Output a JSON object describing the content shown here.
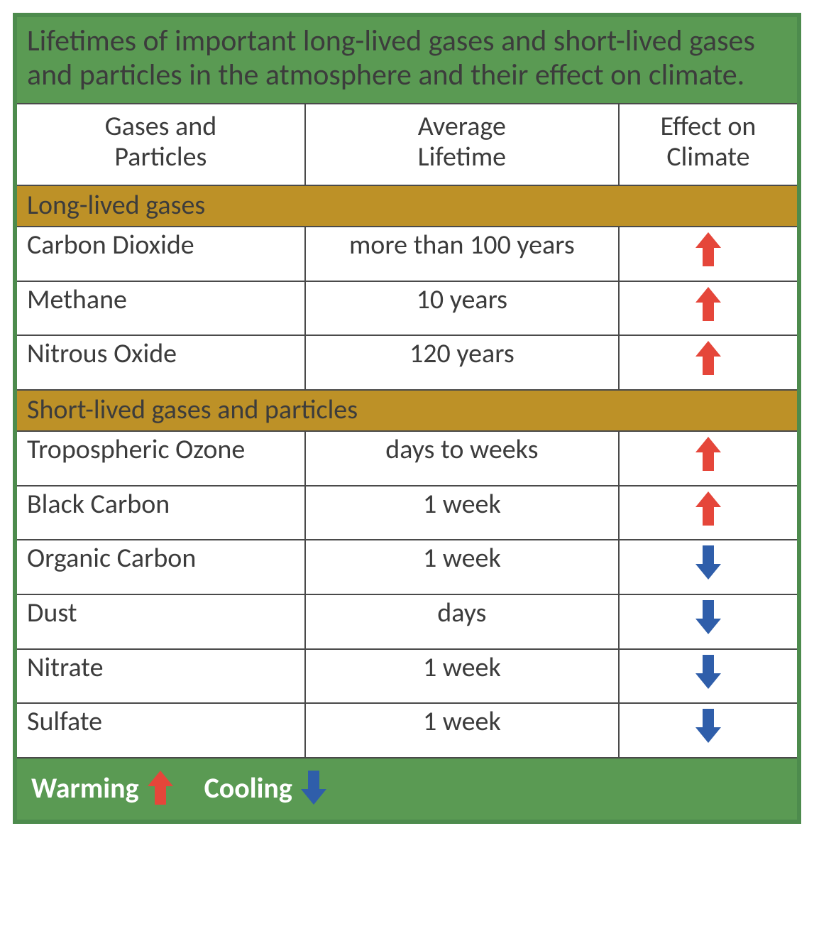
{
  "colors": {
    "border_outer": "#4d8b4d",
    "title_bg": "#5a9a53",
    "section_bg": "#bd9127",
    "legend_bg": "#5a9a53",
    "text": "#3c3c3c",
    "legend_text": "#ffffff",
    "warm_arrow": "#e5463a",
    "cool_arrow": "#2f5eaa"
  },
  "title": "Lifetimes of important long-lived gases and short-lived gases and particles in the atmosphere and their effect on climate.",
  "headers": {
    "col1_a": "Gases and",
    "col1_b": "Particles",
    "col2_a": "Average",
    "col2_b": "Lifetime",
    "col3_a": "Effect on",
    "col3_b": "Climate"
  },
  "sections": [
    {
      "label": "Long-lived gases",
      "rows": [
        {
          "name": "Carbon Dioxide",
          "lifetime": "more than 100 years",
          "effect": "warm"
        },
        {
          "name": "Methane",
          "lifetime": "10 years",
          "effect": "warm"
        },
        {
          "name": "Nitrous Oxide",
          "lifetime": "120 years",
          "effect": "warm"
        }
      ]
    },
    {
      "label": "Short-lived gases and particles",
      "rows": [
        {
          "name": "Tropospheric Ozone",
          "lifetime": "days to weeks",
          "effect": "warm"
        },
        {
          "name": "Black Carbon",
          "lifetime": "1 week",
          "effect": "warm"
        },
        {
          "name": "Organic Carbon",
          "lifetime": "1 week",
          "effect": "cool"
        },
        {
          "name": "Dust",
          "lifetime": "days",
          "effect": "cool"
        },
        {
          "name": "Nitrate",
          "lifetime": "1 week",
          "effect": "cool"
        },
        {
          "name": "Sulfate",
          "lifetime": "1 week",
          "effect": "cool"
        }
      ]
    }
  ],
  "legend": {
    "warm_label": "Warming",
    "cool_label": "Cooling"
  }
}
